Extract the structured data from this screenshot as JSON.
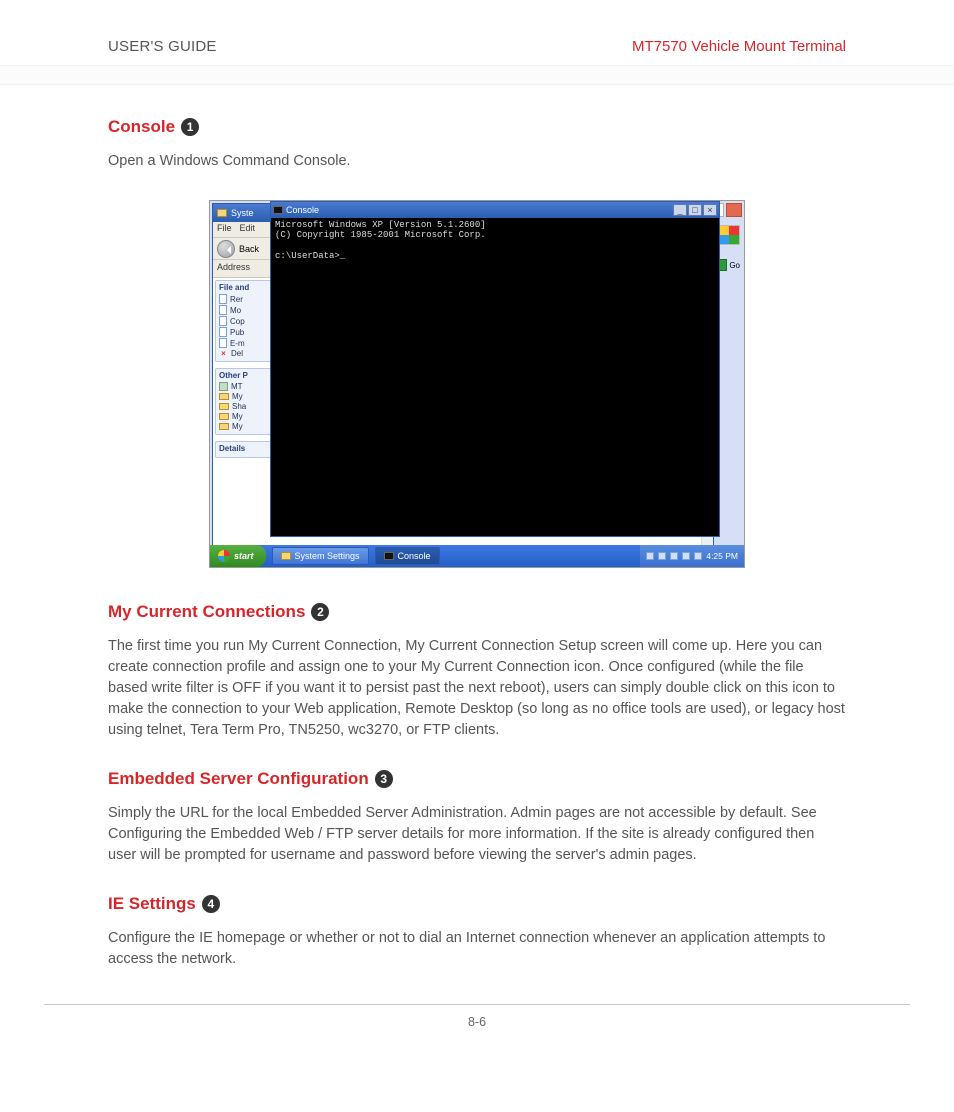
{
  "colors": {
    "accent_red": "#d7262a",
    "body_text": "#555555",
    "rule": "#c7c7c7",
    "circle_bg": "#333333",
    "circle_fg": "#ffffff"
  },
  "header": {
    "left": "USER'S GUIDE",
    "right": "MT7570 Vehicle Mount Terminal"
  },
  "sections": {
    "console": {
      "title": "Console",
      "num": "1",
      "body": "Open a Windows Command Console."
    },
    "connections": {
      "title": "My Current Connections",
      "num": "2",
      "body": "The first time you run My Current Connection, My Current Connection Setup screen will come up.  Here you can create connection profile and assign one to your My Current Connection icon.  Once configured (while the file based write filter is OFF if you want it to persist past the next reboot), users can simply double click on this icon to make the connection to your Web application, Remote Desktop (so long as no office tools are used), or legacy host using telnet, Tera Term Pro, TN5250, wc3270,  or FTP clients."
    },
    "embedded": {
      "title": "Embedded Server Configuration",
      "num": "3",
      "body": "Simply the URL for the local Embedded Server Administration.  Admin pages are not accessible by default.  See Configuring the Embedded Web / FTP server details for more information.  If the site is already configured then user will be prompted for username and password before viewing the server's admin pages."
    },
    "ie": {
      "title": "IE Settings",
      "num": "4",
      "body": "Configure the IE homepage or whether or not to dial an Internet connection whenever an application attempts to access the network."
    }
  },
  "screenshot": {
    "explorer": {
      "title": "Syste",
      "menu": {
        "file": "File",
        "edit": "Edit"
      },
      "back": "Back",
      "address_label": "Address",
      "go": "Go",
      "panel1": {
        "title": "File and",
        "items": [
          "Rer",
          "Mo",
          "Cop",
          "Pub",
          "E-m",
          "Del"
        ]
      },
      "panel2": {
        "title": "Other P",
        "items": [
          "MT",
          "My",
          "Sha",
          "My",
          "My"
        ]
      },
      "panel3": {
        "title": "Details"
      }
    },
    "console_window": {
      "title": "Console",
      "lines": [
        "Microsoft Windows XP [Version 5.1.2600]",
        "(C) Copyright 1985-2001 Microsoft Corp.",
        "",
        "c:\\UserData>_"
      ],
      "btn_min": "_",
      "btn_max": "□",
      "btn_close": "×"
    },
    "taskbar": {
      "start": "start",
      "task1": "System Settings",
      "task2": "Console",
      "clock": "4:25 PM"
    }
  },
  "page_number": "8-6"
}
